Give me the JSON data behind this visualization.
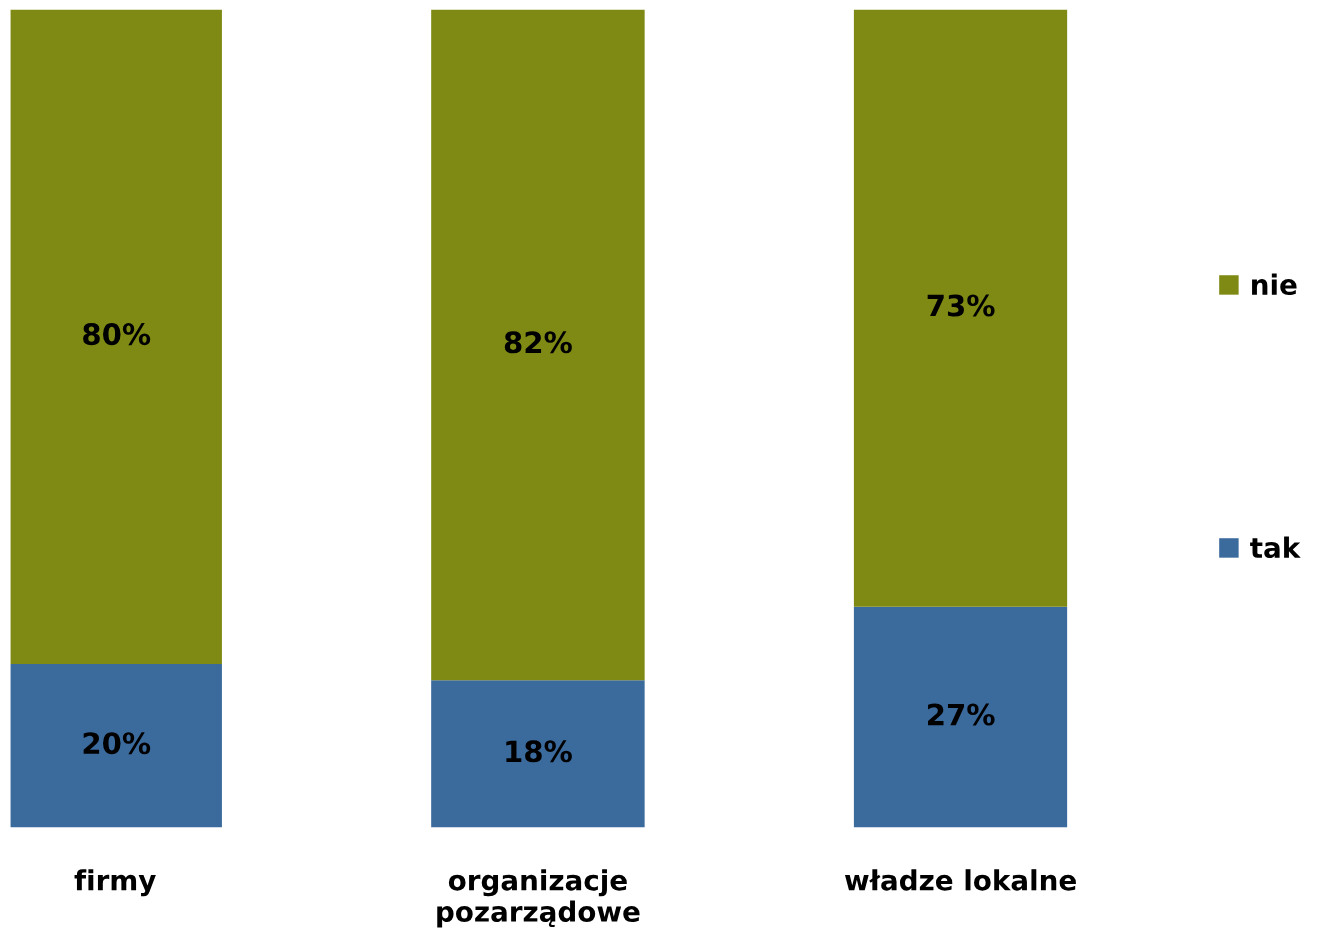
{
  "chart_data": {
    "type": "bar",
    "stacked": true,
    "categories": [
      "firmy",
      "organizacje\npozarządowe",
      "władze lokalne"
    ],
    "series": [
      {
        "name": "tak",
        "color": "#3b6a9c",
        "values": [
          20,
          18,
          27
        ],
        "value_labels": [
          "20%",
          "18%",
          "27%"
        ]
      },
      {
        "name": "nie",
        "color": "#7f8a14",
        "values": [
          80,
          82,
          73
        ],
        "value_labels": [
          "80%",
          "82%",
          "73%"
        ]
      }
    ],
    "legend": "right",
    "grid": false
  }
}
